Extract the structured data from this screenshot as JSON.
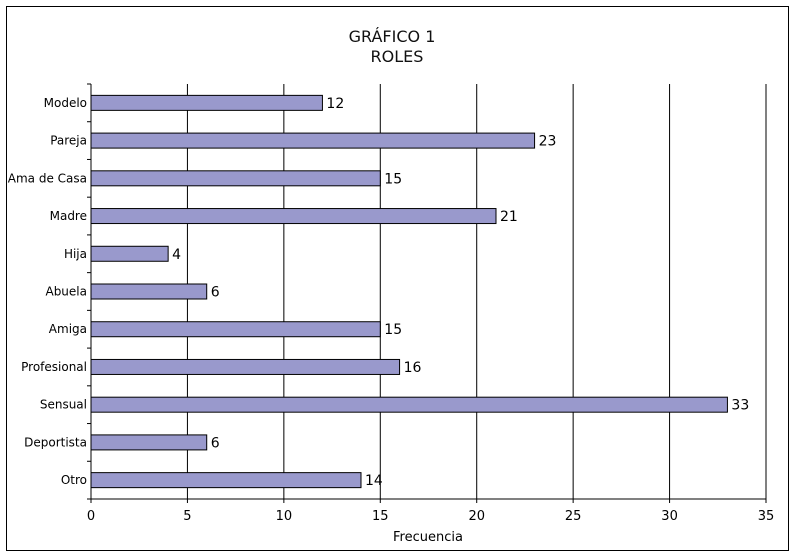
{
  "chart_data": {
    "type": "bar",
    "orientation": "horizontal",
    "title_lines": [
      "GRÁFICO 1",
      "ROLES"
    ],
    "xlabel": "Frecuencia",
    "ylabel": "",
    "categories": [
      "Modelo",
      "Pareja",
      "Ama de Casa",
      "Madre",
      "Hija",
      "Abuela",
      "Amiga",
      "Profesional",
      "Sensual",
      "Deportista",
      "Otro"
    ],
    "values": [
      12,
      23,
      15,
      21,
      4,
      6,
      15,
      16,
      33,
      6,
      14
    ],
    "xlim": [
      0,
      35
    ],
    "xticks": [
      0,
      5,
      10,
      15,
      20,
      25,
      30,
      35
    ],
    "grid": "vertical",
    "legend": "none",
    "bar_color": "#9999cc",
    "bar_edge_color": "#000000",
    "grid_color": "#000000"
  }
}
